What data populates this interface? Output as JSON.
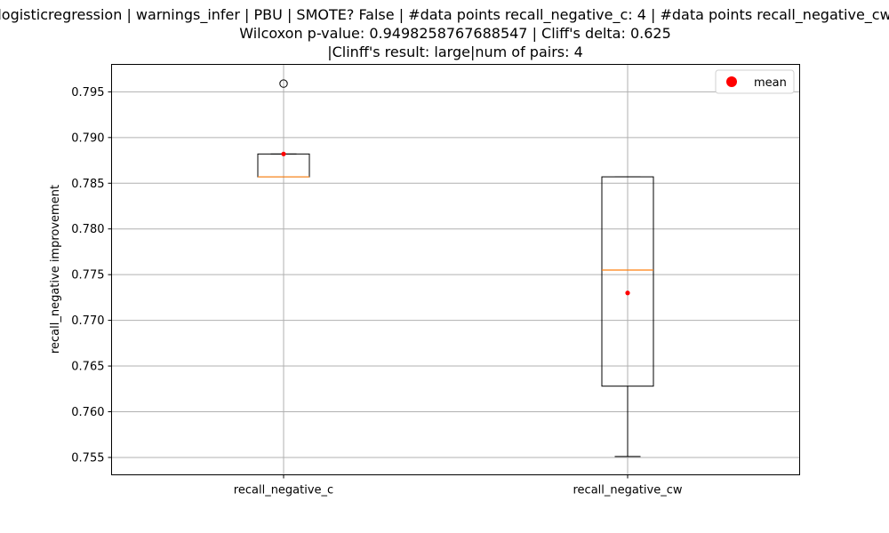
{
  "chart_data": {
    "type": "box",
    "title_lines": [
      "logisticregression | warnings_infer | PBU | SMOTE? False | #data points recall_negative_c: 4 | #data points recall_negative_cw",
      "Wilcoxon p-value: 0.9498258767688547 | Cliff's delta: 0.625",
      "|Clinff's result: large|num of pairs: 4"
    ],
    "xlabel": "",
    "ylabel": "recall_negative improvement",
    "ylim": [
      0.7531,
      0.798
    ],
    "yticks": [
      "0.755",
      "0.760",
      "0.765",
      "0.770",
      "0.775",
      "0.780",
      "0.785",
      "0.790",
      "0.795"
    ],
    "grid": true,
    "legend": {
      "position": "top-right",
      "entries": [
        "mean"
      ]
    },
    "colors": {
      "box": "#000000",
      "median": "#ff7f0e",
      "mean": "#ff0000",
      "grid": "#b0b0b0"
    },
    "categories": [
      "recall_negative_c",
      "recall_negative_cw"
    ],
    "boxes": [
      {
        "name": "recall_negative_c",
        "whisker_low": 0.7857,
        "q1": 0.7857,
        "median": 0.7857,
        "q3": 0.7882,
        "whisker_high": 0.7882,
        "mean": 0.7882,
        "fliers": [
          0.7959
        ]
      },
      {
        "name": "recall_negative_cw",
        "whisker_low": 0.7551,
        "q1": 0.7628,
        "median": 0.7755,
        "q3": 0.7857,
        "whisker_high": 0.7857,
        "mean": 0.773,
        "fliers": []
      }
    ]
  }
}
